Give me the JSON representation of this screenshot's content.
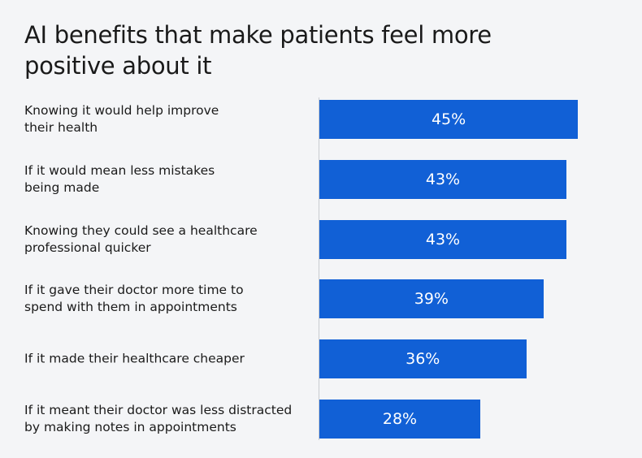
{
  "chart_data": {
    "type": "bar",
    "orientation": "horizontal",
    "title": "AI benefits that make patients feel more\npositive about it",
    "categories": [
      "Knowing it would help improve\ntheir health",
      "If it would mean less mistakes\nbeing made",
      "Knowing they could see a healthcare\nprofessional quicker",
      "If it gave their doctor more time to\nspend with them in appointments",
      "If it made their healthcare cheaper",
      "If it meant their doctor was less distracted\nby making notes in appointments"
    ],
    "values": [
      45,
      43,
      43,
      39,
      36,
      28
    ],
    "value_labels": [
      "45%",
      "43%",
      "43%",
      "39%",
      "36%",
      "28%"
    ],
    "color": "#1160d6"
  }
}
